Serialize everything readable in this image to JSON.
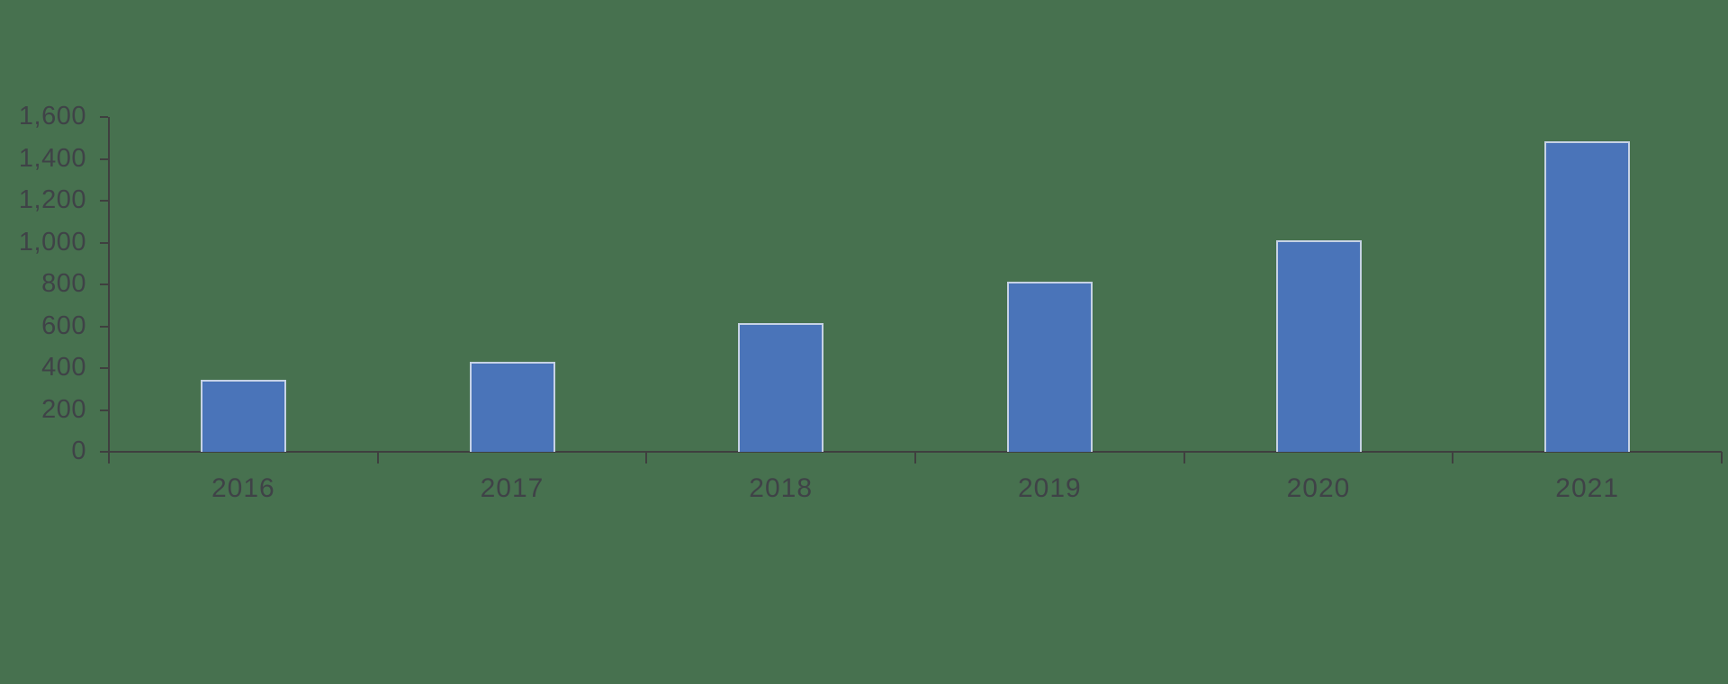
{
  "background_color": "#47714F",
  "chart_data": {
    "type": "bar",
    "title": "",
    "xlabel": "",
    "ylabel": "",
    "categories": [
      "2016",
      "2017",
      "2018",
      "2019",
      "2020",
      "2021"
    ],
    "values": [
      345,
      430,
      615,
      815,
      1010,
      1485
    ],
    "ylim": [
      0,
      1600
    ],
    "y_tick_interval": 200,
    "y_ticks": [
      0,
      200,
      400,
      600,
      800,
      1000,
      1200,
      1400,
      1600
    ],
    "y_tick_labels": [
      "0",
      "200",
      "400",
      "600",
      "800",
      "1,000",
      "1,200",
      "1,400",
      "1,600"
    ],
    "grid": false,
    "legend": false,
    "bar_color": "#4A74B9",
    "bar_border_color": "#C6D2E5",
    "axis_color": "#3F3F3F",
    "text_color": "#3F4247"
  }
}
